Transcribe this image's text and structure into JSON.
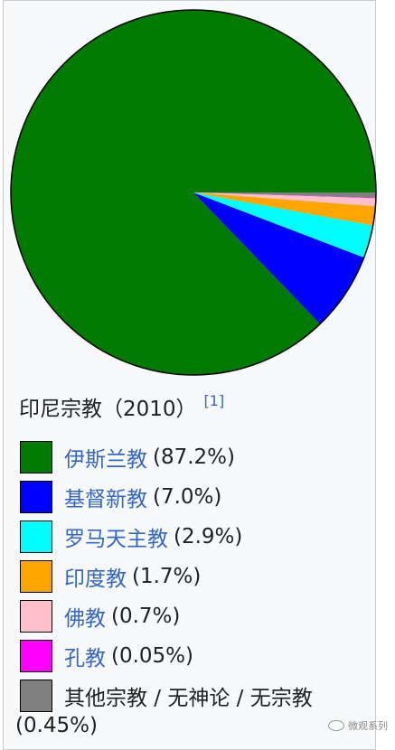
{
  "chart_data": {
    "type": "pie",
    "title": "印尼宗教（2010）",
    "reference": "[1]",
    "slices": [
      {
        "label": "伊斯兰教",
        "value": 87.2,
        "value_label": "(87.2%)",
        "color": "#007a00",
        "link": true
      },
      {
        "label": "基督新教",
        "value": 7.0,
        "value_label": "(7.0%)",
        "color": "#0000ff",
        "link": true
      },
      {
        "label": "罗马天主教",
        "value": 2.9,
        "value_label": "(2.9%)",
        "color": "#00ffff",
        "link": true
      },
      {
        "label": "印度教",
        "value": 1.7,
        "value_label": "(1.7%)",
        "color": "#ffa500",
        "link": true
      },
      {
        "label": "佛教",
        "value": 0.7,
        "value_label": "(0.7%)",
        "color": "#ffc0cb",
        "link": true
      },
      {
        "label": "孔教",
        "value": 0.05,
        "value_label": "(0.05%)",
        "color": "#ff00ff",
        "link": true
      },
      {
        "label": "其他宗教 / 无神论 / 无宗教",
        "value": 0.45,
        "value_label": "(0.45%)",
        "color": "#808080",
        "link": false
      }
    ],
    "start_angle_deg": 0,
    "direction": "counterclockwise"
  },
  "watermark": "微观系列"
}
